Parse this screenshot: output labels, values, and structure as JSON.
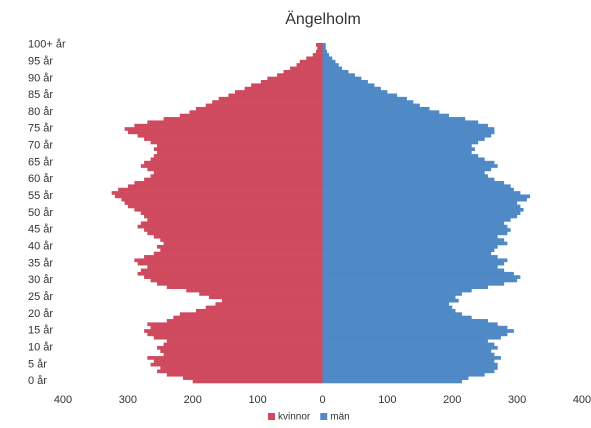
{
  "chart_data": {
    "type": "pyramid",
    "title": "Ängelholm",
    "categories": [
      "0 år",
      null,
      null,
      null,
      null,
      "5 år",
      null,
      null,
      null,
      null,
      "10 år",
      null,
      null,
      null,
      null,
      "15 år",
      null,
      null,
      null,
      null,
      "20 år",
      null,
      null,
      null,
      null,
      "25 år",
      null,
      null,
      null,
      null,
      "30 år",
      null,
      null,
      null,
      null,
      "35 år",
      null,
      null,
      null,
      null,
      "40 år",
      null,
      null,
      null,
      null,
      "45 år",
      null,
      null,
      null,
      null,
      "50 år",
      null,
      null,
      null,
      null,
      "55 år",
      null,
      null,
      null,
      null,
      "60 år",
      null,
      null,
      null,
      null,
      "65 år",
      null,
      null,
      null,
      null,
      "70 år",
      null,
      null,
      null,
      null,
      "75 år",
      null,
      null,
      null,
      null,
      "80 år",
      null,
      null,
      null,
      null,
      "85 år",
      null,
      null,
      null,
      null,
      "90 år",
      null,
      null,
      null,
      null,
      "95 år",
      null,
      null,
      null,
      null,
      "100+ år"
    ],
    "series": [
      {
        "name": "kvinnor",
        "color": "#cf4a5f",
        "values": [
          -200,
          -215,
          -240,
          -255,
          -250,
          -265,
          -260,
          -270,
          -245,
          -250,
          -255,
          -245,
          -240,
          -260,
          -270,
          -275,
          -265,
          -270,
          -240,
          -230,
          -220,
          -195,
          -180,
          -165,
          -155,
          -175,
          -190,
          -210,
          -240,
          -255,
          -265,
          -275,
          -285,
          -280,
          -270,
          -285,
          -290,
          -275,
          -260,
          -250,
          -255,
          -245,
          -250,
          -260,
          -270,
          -275,
          -285,
          -280,
          -270,
          -275,
          -280,
          -290,
          -300,
          -305,
          -310,
          -320,
          -325,
          -315,
          -300,
          -290,
          -275,
          -265,
          -260,
          -270,
          -280,
          -275,
          -265,
          -260,
          -255,
          -260,
          -255,
          -265,
          -275,
          -285,
          -300,
          -305,
          -290,
          -270,
          -245,
          -220,
          -205,
          -195,
          -180,
          -170,
          -160,
          -145,
          -135,
          -120,
          -110,
          -95,
          -85,
          -70,
          -60,
          -50,
          -40,
          -35,
          -25,
          -15,
          -10,
          -8,
          -10
        ]
      },
      {
        "name": "män",
        "color": "#4f89c6",
        "values": [
          215,
          225,
          250,
          265,
          270,
          270,
          265,
          275,
          265,
          260,
          270,
          265,
          255,
          275,
          285,
          295,
          285,
          270,
          255,
          230,
          215,
          205,
          200,
          195,
          210,
          205,
          215,
          230,
          255,
          280,
          300,
          305,
          295,
          280,
          270,
          280,
          285,
          270,
          260,
          265,
          270,
          285,
          280,
          270,
          285,
          290,
          285,
          280,
          290,
          300,
          305,
          310,
          305,
          300,
          315,
          320,
          305,
          295,
          290,
          280,
          265,
          255,
          250,
          260,
          270,
          265,
          250,
          240,
          230,
          235,
          230,
          240,
          250,
          260,
          265,
          265,
          255,
          240,
          220,
          195,
          180,
          165,
          150,
          140,
          130,
          115,
          100,
          90,
          80,
          70,
          60,
          50,
          40,
          30,
          25,
          20,
          15,
          10,
          7,
          5,
          5
        ]
      }
    ],
    "xlim": [
      -400,
      400
    ],
    "xticks": [
      {
        "value": -400,
        "label": "400"
      },
      {
        "value": -300,
        "label": "300"
      },
      {
        "value": -200,
        "label": "200"
      },
      {
        "value": -100,
        "label": "100"
      },
      0,
      100,
      200,
      300,
      400
    ]
  }
}
